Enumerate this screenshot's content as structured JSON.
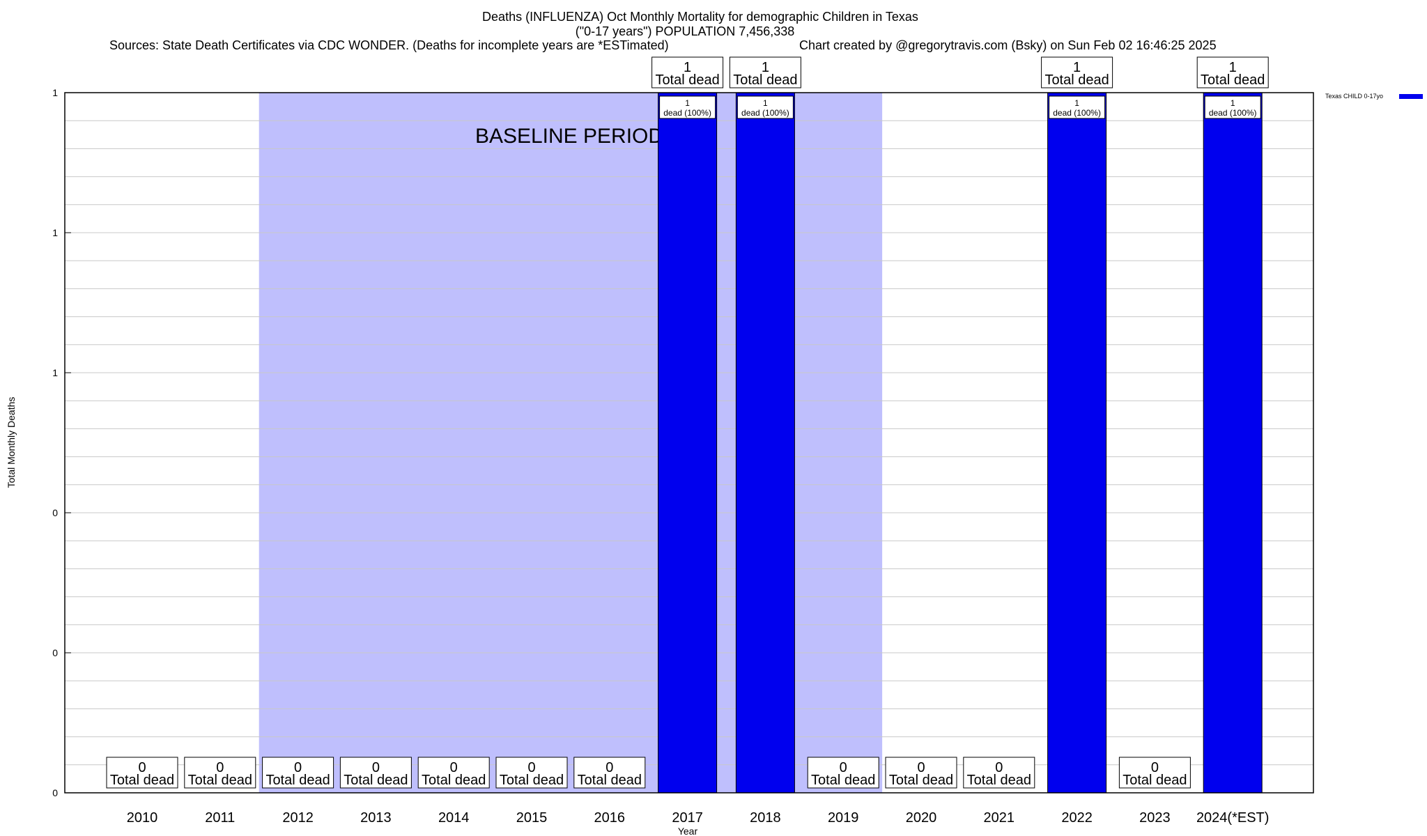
{
  "chart_data": {
    "type": "bar",
    "title": "Deaths (INFLUENZA) Oct Monthly Mortality for demographic Children in Texas",
    "subtitle": "(\"0-17 years\") POPULATION 7,456,338",
    "sources": "Sources: State Death Certificates via CDC WONDER. (Deaths for incomplete years are *ESTimated)",
    "credit": "Chart created by @gregorytravis.com (Bsky) on Sun Feb 02 16:46:25 2025",
    "xlabel": "Year",
    "ylabel": "Total Monthly Deaths",
    "ylim": [
      0,
      1
    ],
    "y_tick_labels": [
      "0",
      "0",
      "0",
      "1",
      "1",
      "1"
    ],
    "grid": true,
    "legend_placement": "top-right",
    "categories": [
      "2010",
      "2011",
      "2012",
      "2013",
      "2014",
      "2015",
      "2016",
      "2017",
      "2018",
      "2019",
      "2020",
      "2021",
      "2022",
      "2023",
      "2024(*EST)"
    ],
    "series": [
      {
        "name": "Texas CHILD 0-17yo",
        "color": "#0000ee",
        "values": [
          0,
          0,
          0,
          0,
          0,
          0,
          0,
          1,
          1,
          0,
          0,
          0,
          1,
          0,
          1
        ]
      }
    ],
    "total_label_text": "Total dead",
    "bar_inner_label_text": "dead (100%)",
    "baseline_period": {
      "label": "BASELINE PERIOD",
      "start": "2012",
      "end": "2019",
      "color": "#bfbffd"
    }
  }
}
